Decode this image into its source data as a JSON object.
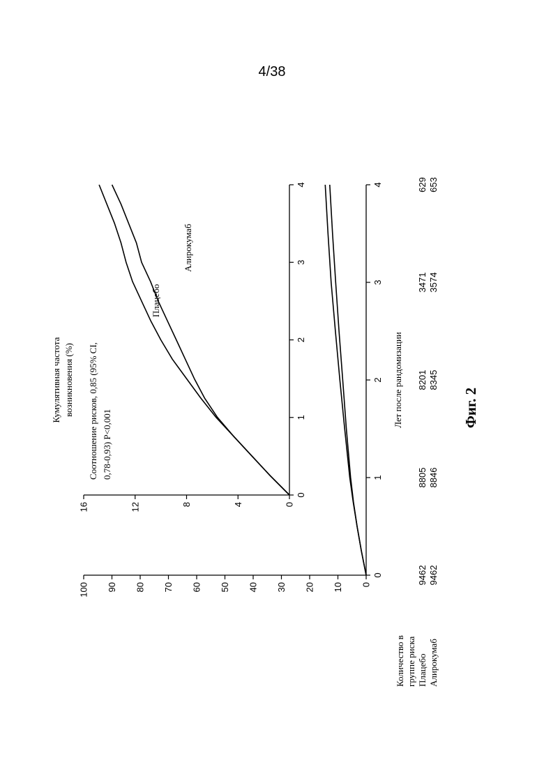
{
  "page": {
    "number": "4/38",
    "figure_label": "Фиг. 2"
  },
  "chart_data": [
    {
      "type": "line",
      "panel": "main",
      "ylabel": "Кумулятивная частота возникновения (%)",
      "xlabel": "Лет после рандомизации",
      "xlim": [
        0,
        4
      ],
      "ylim": [
        0,
        100
      ],
      "x_ticks": [
        "0",
        "1",
        "2",
        "3",
        "4"
      ],
      "y_ticks": [
        "0",
        "10",
        "20",
        "30",
        "40",
        "50",
        "60",
        "70",
        "80",
        "90",
        "100"
      ],
      "series": [
        {
          "name": "Плацебо",
          "x": [
            0,
            0.25,
            0.5,
            0.75,
            1,
            1.5,
            2,
            2.5,
            3,
            3.5,
            4
          ],
          "y": [
            0,
            1.7,
            3.2,
            4.6,
            5.8,
            7.6,
            9.3,
            10.9,
            12.4,
            13.5,
            14.5
          ]
        },
        {
          "name": "Алирокумаб",
          "x": [
            0,
            0.25,
            0.5,
            0.75,
            1,
            1.5,
            2,
            2.5,
            3,
            3.5,
            4
          ],
          "y": [
            0,
            1.7,
            3.2,
            4.5,
            5.5,
            7.0,
            8.3,
            9.6,
            10.8,
            11.9,
            12.9
          ]
        }
      ]
    },
    {
      "type": "line",
      "panel": "inset",
      "xlim": [
        0,
        4
      ],
      "ylim": [
        0,
        16
      ],
      "x_ticks": [
        "0",
        "1",
        "2",
        "3",
        "4"
      ],
      "y_ticks": [
        "0",
        "4",
        "8",
        "12",
        "16"
      ],
      "annotation": "Соотношение рисков, 0,85 (95% CI, 0,78-0,93) P<0,001",
      "annotation_lines": [
        "Соотношение рисков, 0,85 (95% CI,",
        "0,78-0,93) P<0,001"
      ],
      "series": [
        {
          "name": "Плацебо",
          "x": [
            0,
            0.25,
            0.5,
            0.75,
            1,
            1.25,
            1.5,
            1.75,
            2,
            2.25,
            2.5,
            2.75,
            3,
            3.25,
            3.5,
            3.75,
            4
          ],
          "y": [
            0,
            1.5,
            2.9,
            4.3,
            5.7,
            6.9,
            8.0,
            9.1,
            10.0,
            10.8,
            11.5,
            12.2,
            12.7,
            13.1,
            13.6,
            14.2,
            14.8
          ]
        },
        {
          "name": "Алирокумаб",
          "x": [
            0,
            0.25,
            0.5,
            0.75,
            1,
            1.25,
            1.5,
            1.75,
            2,
            2.25,
            2.5,
            2.75,
            3,
            3.25,
            3.5,
            3.75,
            4
          ],
          "y": [
            0,
            1.5,
            2.9,
            4.3,
            5.6,
            6.6,
            7.4,
            8.1,
            8.8,
            9.5,
            10.2,
            10.8,
            11.5,
            11.9,
            12.5,
            13.1,
            13.8
          ]
        }
      ]
    }
  ],
  "risk_table": {
    "header_lines": [
      "Количество в",
      "группе риска"
    ],
    "rows": [
      {
        "label": "Плацебо",
        "values": [
          "9462",
          "8805",
          "8201",
          "3471",
          "629"
        ]
      },
      {
        "label": "Алирокумаб",
        "values": [
          "9462",
          "8846",
          "8345",
          "3574",
          "653"
        ]
      }
    ]
  },
  "colors": {
    "line": "#000000",
    "background": "#ffffff"
  }
}
